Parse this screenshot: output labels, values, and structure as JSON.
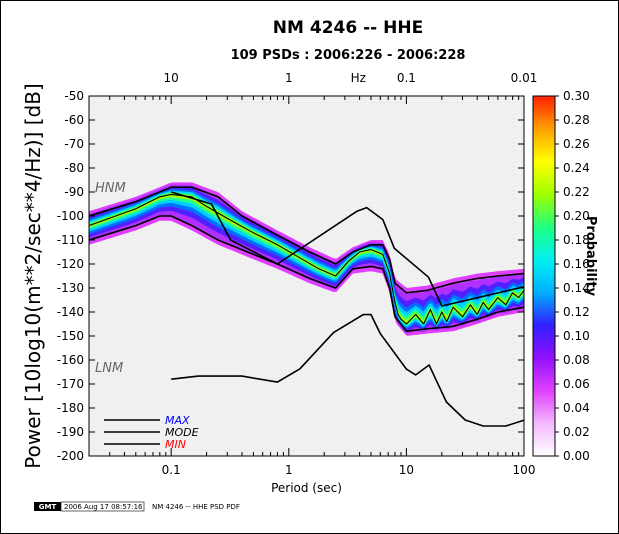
{
  "title": "NM 4246 -- HHE",
  "subtitle": "109 PSDs : 2006:226 - 2006:228",
  "footer": {
    "logo_text": "GMT",
    "timestamp": "2006 Aug 17 08:57:16",
    "caption": "NM 4246 -- HHE PSD PDF"
  },
  "chart_data": {
    "type": "heatmap",
    "title": "NM 4246 -- HHE",
    "subtitle": "109 PSDs : 2006:226 - 2006:228",
    "xlabel": "Period (sec)",
    "ylabel": "Power [10log10(m**2/sec**4/Hz)] [dB]",
    "top_xlabel": "Hz",
    "xscale": "log",
    "xlim": [
      0.02,
      100
    ],
    "ylim": [
      -200,
      -50
    ],
    "x_ticks": [
      0.1,
      1,
      10,
      100
    ],
    "x_tick_labels": [
      "0.1",
      "1",
      "10",
      "100"
    ],
    "top_ticks": [
      10,
      1,
      0.1,
      0.01
    ],
    "top_tick_labels": [
      "10",
      "1",
      "0.1",
      "0.01"
    ],
    "y_ticks": [
      -200,
      -190,
      -180,
      -170,
      -160,
      -150,
      -140,
      -130,
      -120,
      -110,
      -100,
      -90,
      -80,
      -70,
      -60,
      -50
    ],
    "colorbar": {
      "label": "Probability",
      "range": [
        0,
        0.3
      ],
      "ticks": [
        0.0,
        0.02,
        0.04,
        0.06,
        0.08,
        0.1,
        0.12,
        0.14,
        0.16,
        0.18,
        0.2,
        0.22,
        0.24,
        0.26,
        0.28,
        0.3
      ],
      "tick_labels": [
        "0.00",
        "0.02",
        "0.04",
        "0.06",
        "0.08",
        "0.10",
        "0.12",
        "0.14",
        "0.16",
        "0.18",
        "0.20",
        "0.22",
        "0.24",
        "0.26",
        "0.28",
        "0.30"
      ],
      "colors": [
        "#ffffff",
        "#f3b8ff",
        "#df40ff",
        "#9010ff",
        "#3020ff",
        "#00b0ff",
        "#00f0f0",
        "#20ff80",
        "#a0ff00",
        "#ffff00",
        "#ffa000",
        "#ff2000"
      ]
    },
    "annotations": [
      "HNM",
      "LNM"
    ],
    "legend": {
      "placement": "bottom-left",
      "entries": [
        {
          "label": "MAX",
          "color": "#0000ff"
        },
        {
          "label": "MODE",
          "color": "#000000"
        },
        {
          "label": "MIN",
          "color": "#ff0000"
        }
      ]
    },
    "series": [
      {
        "name": "HNM",
        "x": [
          0.1,
          0.22,
          0.32,
          0.8,
          3.8,
          4.6,
          6.3,
          7.9,
          15.4,
          20,
          100
        ],
        "y": [
          -90,
          -95,
          -110,
          -120,
          -98,
          -96.5,
          -101.5,
          -113.5,
          -125.5,
          -137.5,
          -129.5
        ]
      },
      {
        "name": "LNM",
        "x": [
          0.1,
          0.17,
          0.4,
          0.8,
          1.24,
          2.4,
          4.3,
          5,
          6,
          10,
          12,
          15.6,
          21.9,
          31.6,
          45,
          70,
          101
        ],
        "y": [
          -168,
          -166.7,
          -166.7,
          -169.2,
          -163.7,
          -148.6,
          -141.1,
          -141.1,
          -149,
          -163.8,
          -166.2,
          -162.1,
          -177.5,
          -185,
          -187.5,
          -187.5,
          -185
        ]
      },
      {
        "name": "MAX",
        "x": [
          0.02,
          0.05,
          0.08,
          0.1,
          0.15,
          0.25,
          0.4,
          0.8,
          1.5,
          2.5,
          3.5,
          5,
          6.3,
          7.2,
          8,
          10,
          15,
          25,
          40,
          60,
          100
        ],
        "y": [
          -100,
          -94,
          -90,
          -88,
          -88,
          -92,
          -100,
          -108,
          -115,
          -120,
          -115,
          -112,
          -112,
          -118,
          -128,
          -132,
          -131,
          -128,
          -126,
          -125,
          -124
        ]
      },
      {
        "name": "MODE",
        "x": [
          0.02,
          0.05,
          0.08,
          0.1,
          0.15,
          0.2,
          0.3,
          0.5,
          0.8,
          1.2,
          1.8,
          2.5,
          3.2,
          4,
          5,
          6.3,
          7.2,
          8,
          8.5,
          9,
          10,
          12,
          14,
          16,
          18,
          20,
          22,
          25,
          30,
          35,
          40,
          45,
          50,
          60,
          70,
          80,
          90,
          100
        ],
        "y": [
          -104,
          -97,
          -92,
          -91,
          -92,
          -96,
          -101,
          -107,
          -112,
          -117,
          -122,
          -125,
          -119,
          -115,
          -114,
          -116,
          -124,
          -136,
          -141,
          -143,
          -145,
          -141,
          -145,
          -139,
          -145,
          -140,
          -144,
          -138,
          -142,
          -137,
          -141,
          -136,
          -139,
          -134,
          -137,
          -132,
          -134,
          -131
        ]
      },
      {
        "name": "MIN",
        "x": [
          0.02,
          0.05,
          0.08,
          0.1,
          0.15,
          0.25,
          0.5,
          0.8,
          1.5,
          2.5,
          3.5,
          5,
          6.3,
          7.2,
          8,
          10,
          15,
          25,
          40,
          60,
          100
        ],
        "y": [
          -110,
          -104,
          -100,
          -100,
          -104,
          -110,
          -116,
          -120,
          -126,
          -130,
          -122,
          -121,
          -122,
          -130,
          -142,
          -148,
          -147,
          -146,
          -143,
          -140,
          -138
        ]
      }
    ]
  }
}
